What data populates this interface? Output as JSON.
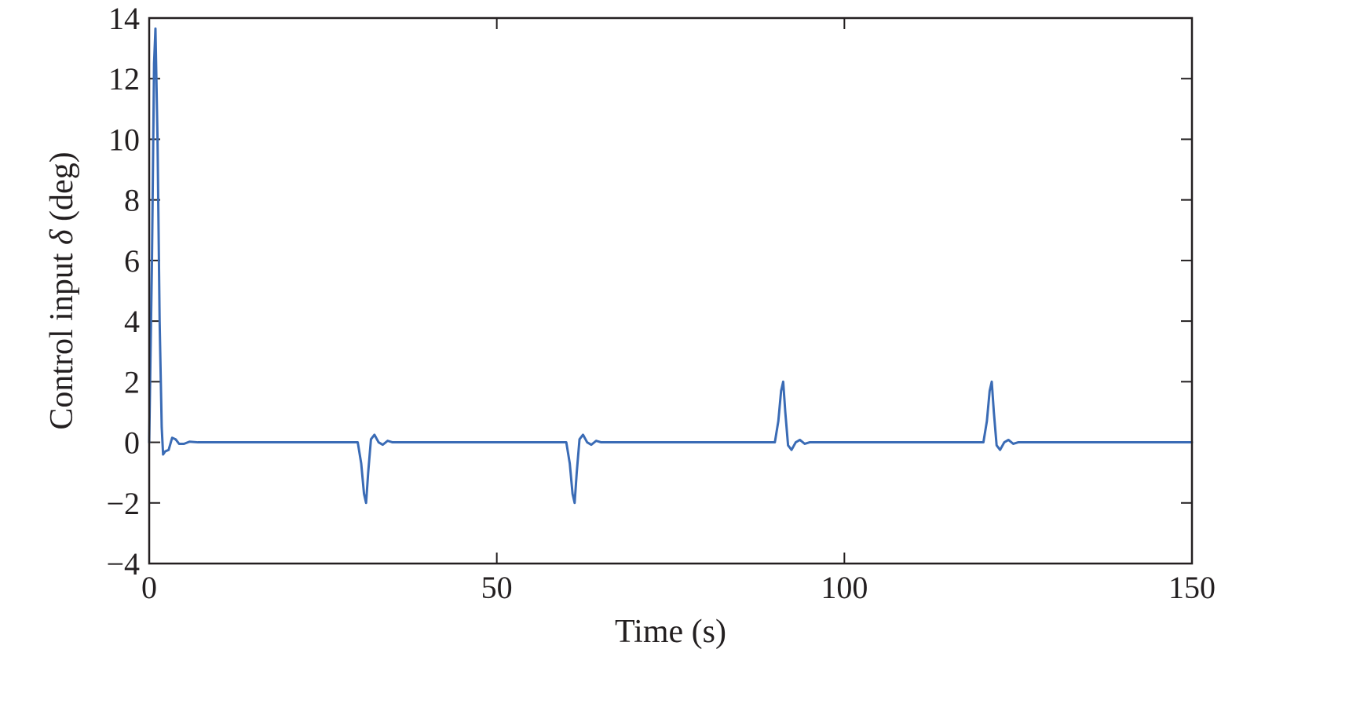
{
  "chart_data": {
    "type": "line",
    "xlabel": "Time (s)",
    "ylabel_prefix": "Control input ",
    "ylabel_symbol": "δ",
    "ylabel_suffix": " (deg)",
    "xlim": [
      0,
      150
    ],
    "ylim": [
      -4,
      14
    ],
    "xticks": [
      0,
      50,
      100,
      150
    ],
    "yticks": [
      -4,
      -2,
      0,
      2,
      4,
      6,
      8,
      10,
      12,
      14
    ],
    "xtick_labels": [
      "0",
      "50",
      "100",
      "150"
    ],
    "ytick_labels": [
      "−4",
      "−2",
      "0",
      "2",
      "4",
      "6",
      "8",
      "10",
      "12",
      "14"
    ],
    "grid": false,
    "line_color": "#3a6bb5",
    "series": [
      {
        "x": [
          0,
          0.4,
          0.7,
          0.9,
          1.2,
          1.5,
          1.8,
          2.0,
          2.3,
          2.8,
          3.3,
          3.8,
          4.3,
          5.0,
          5.8,
          7,
          30.0,
          30.5,
          30.9,
          31.2,
          31.5,
          31.9,
          32.4,
          33.0,
          33.6,
          34.3,
          35.0,
          36.5,
          60.0,
          60.5,
          60.9,
          61.2,
          61.5,
          61.9,
          62.4,
          63.0,
          63.6,
          64.3,
          65.0,
          66.5,
          90.0,
          90.5,
          90.9,
          91.2,
          91.5,
          91.9,
          92.4,
          93.0,
          93.6,
          94.3,
          95.0,
          96.5,
          120.0,
          120.5,
          120.9,
          121.2,
          121.5,
          121.9,
          122.4,
          123.0,
          123.6,
          124.3,
          125.0,
          126.5,
          150
        ],
        "y": [
          0,
          6.0,
          12.5,
          13.65,
          10.0,
          4.0,
          0.5,
          -0.4,
          -0.3,
          -0.25,
          0.15,
          0.1,
          -0.05,
          -0.05,
          0.02,
          0,
          0,
          -0.7,
          -1.7,
          -2.0,
          -1.0,
          0.1,
          0.25,
          0.0,
          -0.08,
          0.05,
          0.0,
          0,
          0,
          -0.7,
          -1.7,
          -2.0,
          -1.0,
          0.1,
          0.25,
          0.0,
          -0.08,
          0.05,
          0.0,
          0,
          0,
          0.7,
          1.7,
          2.0,
          1.0,
          -0.1,
          -0.25,
          0.0,
          0.08,
          -0.05,
          0.0,
          0,
          0,
          0.7,
          1.7,
          2.0,
          1.0,
          -0.1,
          -0.25,
          0.0,
          0.08,
          -0.05,
          0.0,
          0,
          0
        ]
      }
    ]
  }
}
